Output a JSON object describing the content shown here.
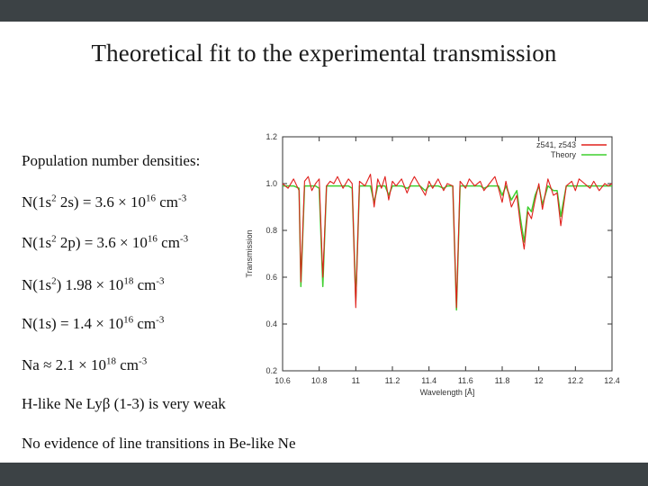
{
  "slide": {
    "title": "Theoretical fit to the experimental transmission"
  },
  "bullets": {
    "b1": "Population number densities:",
    "b2_a": "N(1s",
    "b2_s1": "2",
    "b2_b": " 2s) = 3.6 × 10",
    "b2_s2": "16",
    "b2_c": " cm",
    "b2_s3": "-3",
    "b3_a": "N(1s",
    "b3_s1": "2",
    "b3_b": " 2p) = 3.6 × 10",
    "b3_s2": "16",
    "b3_c": " cm",
    "b3_s3": "-3",
    "b4_a": "N(1s",
    "b4_s1": "2",
    "b4_b": ")    1.98 × 10",
    "b4_s2": "18",
    "b4_c": " cm",
    "b4_s3": "-3",
    "b5_a": "N(1s) = 1.4 × 10",
    "b5_s1": "16",
    "b5_b": " cm",
    "b5_s2": "-3",
    "b6_a": "Na ≈ 2.1 × 10",
    "b6_s1": "18",
    "b6_b": " cm",
    "b6_s2": "-3",
    "b7": "H-like Ne Lyβ (1-3) is very weak",
    "b8": "No evidence of line transitions in Be-like Ne"
  },
  "chart_data": {
    "type": "line",
    "xlabel": "Wavelength [Å]",
    "ylabel": "Transmission",
    "xlim": [
      10.6,
      12.4
    ],
    "ylim": [
      0.2,
      1.2
    ],
    "xticks": [
      "10.6",
      "10.8",
      "11",
      "11.2",
      "11.4",
      "11.6",
      "11.8",
      "12",
      "12.2",
      "12.4"
    ],
    "yticks": [
      "0.2",
      "0.4",
      "0.6",
      "0.8",
      "1.0",
      "1.2"
    ],
    "legend_position": "top-right",
    "series": [
      {
        "name": "z541, z543",
        "color": "#e0201c",
        "x": [
          10.6,
          10.63,
          10.66,
          10.69,
          10.7,
          10.72,
          10.74,
          10.76,
          10.78,
          10.8,
          10.82,
          10.84,
          10.86,
          10.88,
          10.9,
          10.93,
          10.96,
          10.98,
          11.0,
          11.02,
          11.05,
          11.08,
          11.1,
          11.12,
          11.14,
          11.16,
          11.18,
          11.2,
          11.22,
          11.25,
          11.28,
          11.3,
          11.32,
          11.35,
          11.38,
          11.4,
          11.42,
          11.45,
          11.48,
          11.5,
          11.53,
          11.55,
          11.57,
          11.6,
          11.62,
          11.65,
          11.68,
          11.7,
          11.73,
          11.76,
          11.78,
          11.8,
          11.82,
          11.85,
          11.88,
          11.9,
          11.92,
          11.94,
          11.96,
          11.98,
          12.0,
          12.02,
          12.05,
          12.08,
          12.1,
          12.12,
          12.15,
          12.18,
          12.2,
          12.22,
          12.25,
          12.28,
          12.3,
          12.33,
          12.36,
          12.38,
          12.4
        ],
        "y": [
          1.0,
          0.98,
          1.02,
          0.97,
          0.58,
          1.01,
          1.03,
          0.97,
          1.0,
          1.02,
          0.6,
          0.99,
          1.01,
          1.0,
          1.03,
          0.98,
          1.02,
          1.0,
          0.47,
          1.01,
          0.99,
          1.04,
          0.9,
          1.02,
          0.98,
          1.03,
          0.93,
          1.01,
          0.99,
          1.02,
          0.96,
          1.0,
          1.03,
          0.99,
          0.95,
          1.01,
          0.98,
          1.02,
          0.97,
          1.0,
          0.99,
          0.47,
          1.01,
          0.98,
          1.02,
          0.99,
          1.01,
          0.97,
          1.0,
          1.03,
          0.98,
          0.92,
          1.01,
          0.9,
          0.95,
          0.82,
          0.72,
          0.88,
          0.85,
          0.93,
          1.0,
          0.89,
          1.02,
          0.95,
          0.96,
          0.82,
          0.99,
          1.01,
          0.97,
          1.02,
          1.0,
          0.98,
          1.01,
          0.97,
          1.0,
          0.99,
          1.0
        ]
      },
      {
        "name": "Theory",
        "color": "#3fcf2f",
        "x": [
          10.6,
          10.63,
          10.66,
          10.69,
          10.7,
          10.72,
          10.74,
          10.76,
          10.78,
          10.8,
          10.82,
          10.84,
          10.86,
          10.88,
          10.9,
          10.93,
          10.96,
          10.98,
          11.0,
          11.02,
          11.05,
          11.08,
          11.1,
          11.12,
          11.14,
          11.16,
          11.18,
          11.2,
          11.22,
          11.25,
          11.28,
          11.3,
          11.32,
          11.35,
          11.38,
          11.4,
          11.42,
          11.45,
          11.48,
          11.5,
          11.53,
          11.55,
          11.57,
          11.6,
          11.62,
          11.65,
          11.68,
          11.7,
          11.73,
          11.76,
          11.78,
          11.8,
          11.82,
          11.85,
          11.88,
          11.9,
          11.92,
          11.94,
          11.96,
          11.98,
          12.0,
          12.02,
          12.05,
          12.08,
          12.1,
          12.12,
          12.15,
          12.18,
          12.2,
          12.22,
          12.25,
          12.28,
          12.3,
          12.33,
          12.36,
          12.38,
          12.4
        ],
        "y": [
          0.99,
          0.99,
          0.99,
          0.98,
          0.56,
          0.99,
          0.99,
          0.99,
          0.99,
          0.98,
          0.56,
          0.99,
          0.99,
          0.99,
          0.99,
          0.99,
          0.99,
          0.98,
          0.5,
          0.99,
          0.99,
          0.99,
          0.92,
          0.99,
          0.99,
          0.99,
          0.95,
          0.99,
          0.99,
          0.99,
          0.98,
          0.99,
          0.99,
          0.99,
          0.97,
          0.99,
          0.99,
          0.99,
          0.98,
          0.99,
          0.99,
          0.46,
          0.99,
          0.99,
          0.99,
          0.99,
          0.99,
          0.98,
          0.99,
          0.99,
          0.99,
          0.95,
          0.99,
          0.93,
          0.97,
          0.85,
          0.75,
          0.9,
          0.88,
          0.95,
          0.99,
          0.91,
          0.99,
          0.97,
          0.97,
          0.86,
          0.99,
          0.99,
          0.99,
          0.99,
          0.99,
          0.99,
          0.99,
          0.99,
          0.99,
          0.99,
          0.99
        ]
      }
    ]
  }
}
